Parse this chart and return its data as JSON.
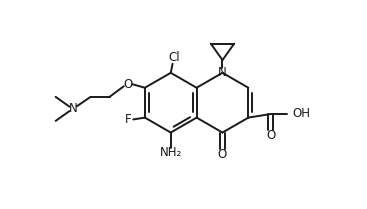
{
  "background_color": "#ffffff",
  "line_color": "#1a1a1a",
  "line_width": 1.4,
  "font_size": 8.5,
  "figsize": [
    3.67,
    2.09
  ],
  "dpi": 100,
  "xlim": [
    0,
    10
  ],
  "ylim": [
    0,
    5.7
  ]
}
